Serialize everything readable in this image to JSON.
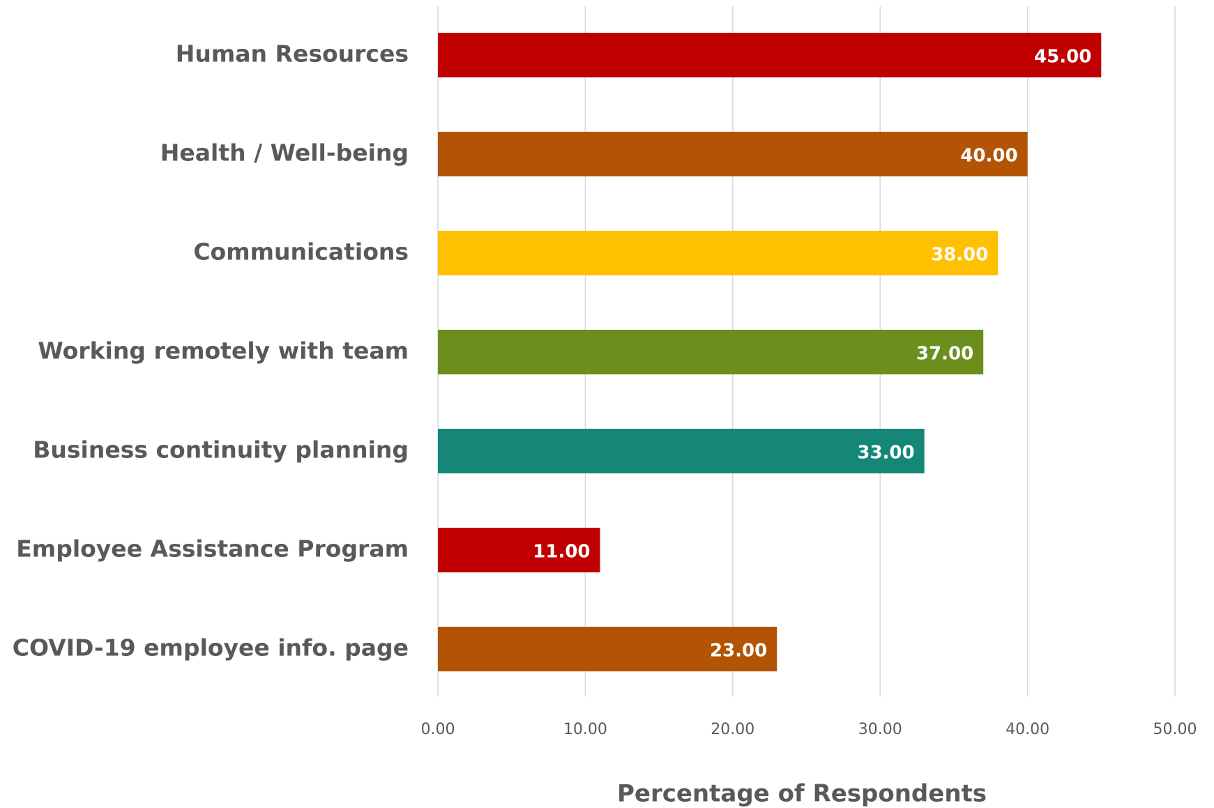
{
  "chart_data": {
    "type": "hbar",
    "categories": [
      "Human Resources",
      "Health / Well-being",
      "Communications",
      "Working remotely with team",
      "Business continuity planning",
      "Employee Assistance Program",
      "COVID-19 employee info. page"
    ],
    "values": [
      45,
      40,
      38,
      37,
      33,
      11,
      23
    ],
    "value_labels": [
      "45.00",
      "40.00",
      "38.00",
      "37.00",
      "33.00",
      "11.00",
      "23.00"
    ],
    "colors": [
      "#c00000",
      "#b35405",
      "#ffc000",
      "#6b8e1d",
      "#158776",
      "#c00000",
      "#b35405"
    ],
    "x_label": "Percentage of Respondents",
    "xlim": [
      0,
      50
    ],
    "xticks": [
      {
        "value": 0,
        "label": "0.00"
      },
      {
        "value": 10,
        "label": "10.00"
      },
      {
        "value": 20,
        "label": "20.00"
      },
      {
        "value": 30,
        "label": "30.00"
      },
      {
        "value": 40,
        "label": "40.00"
      },
      {
        "value": 50,
        "label": "50.00"
      }
    ],
    "grid": true
  }
}
